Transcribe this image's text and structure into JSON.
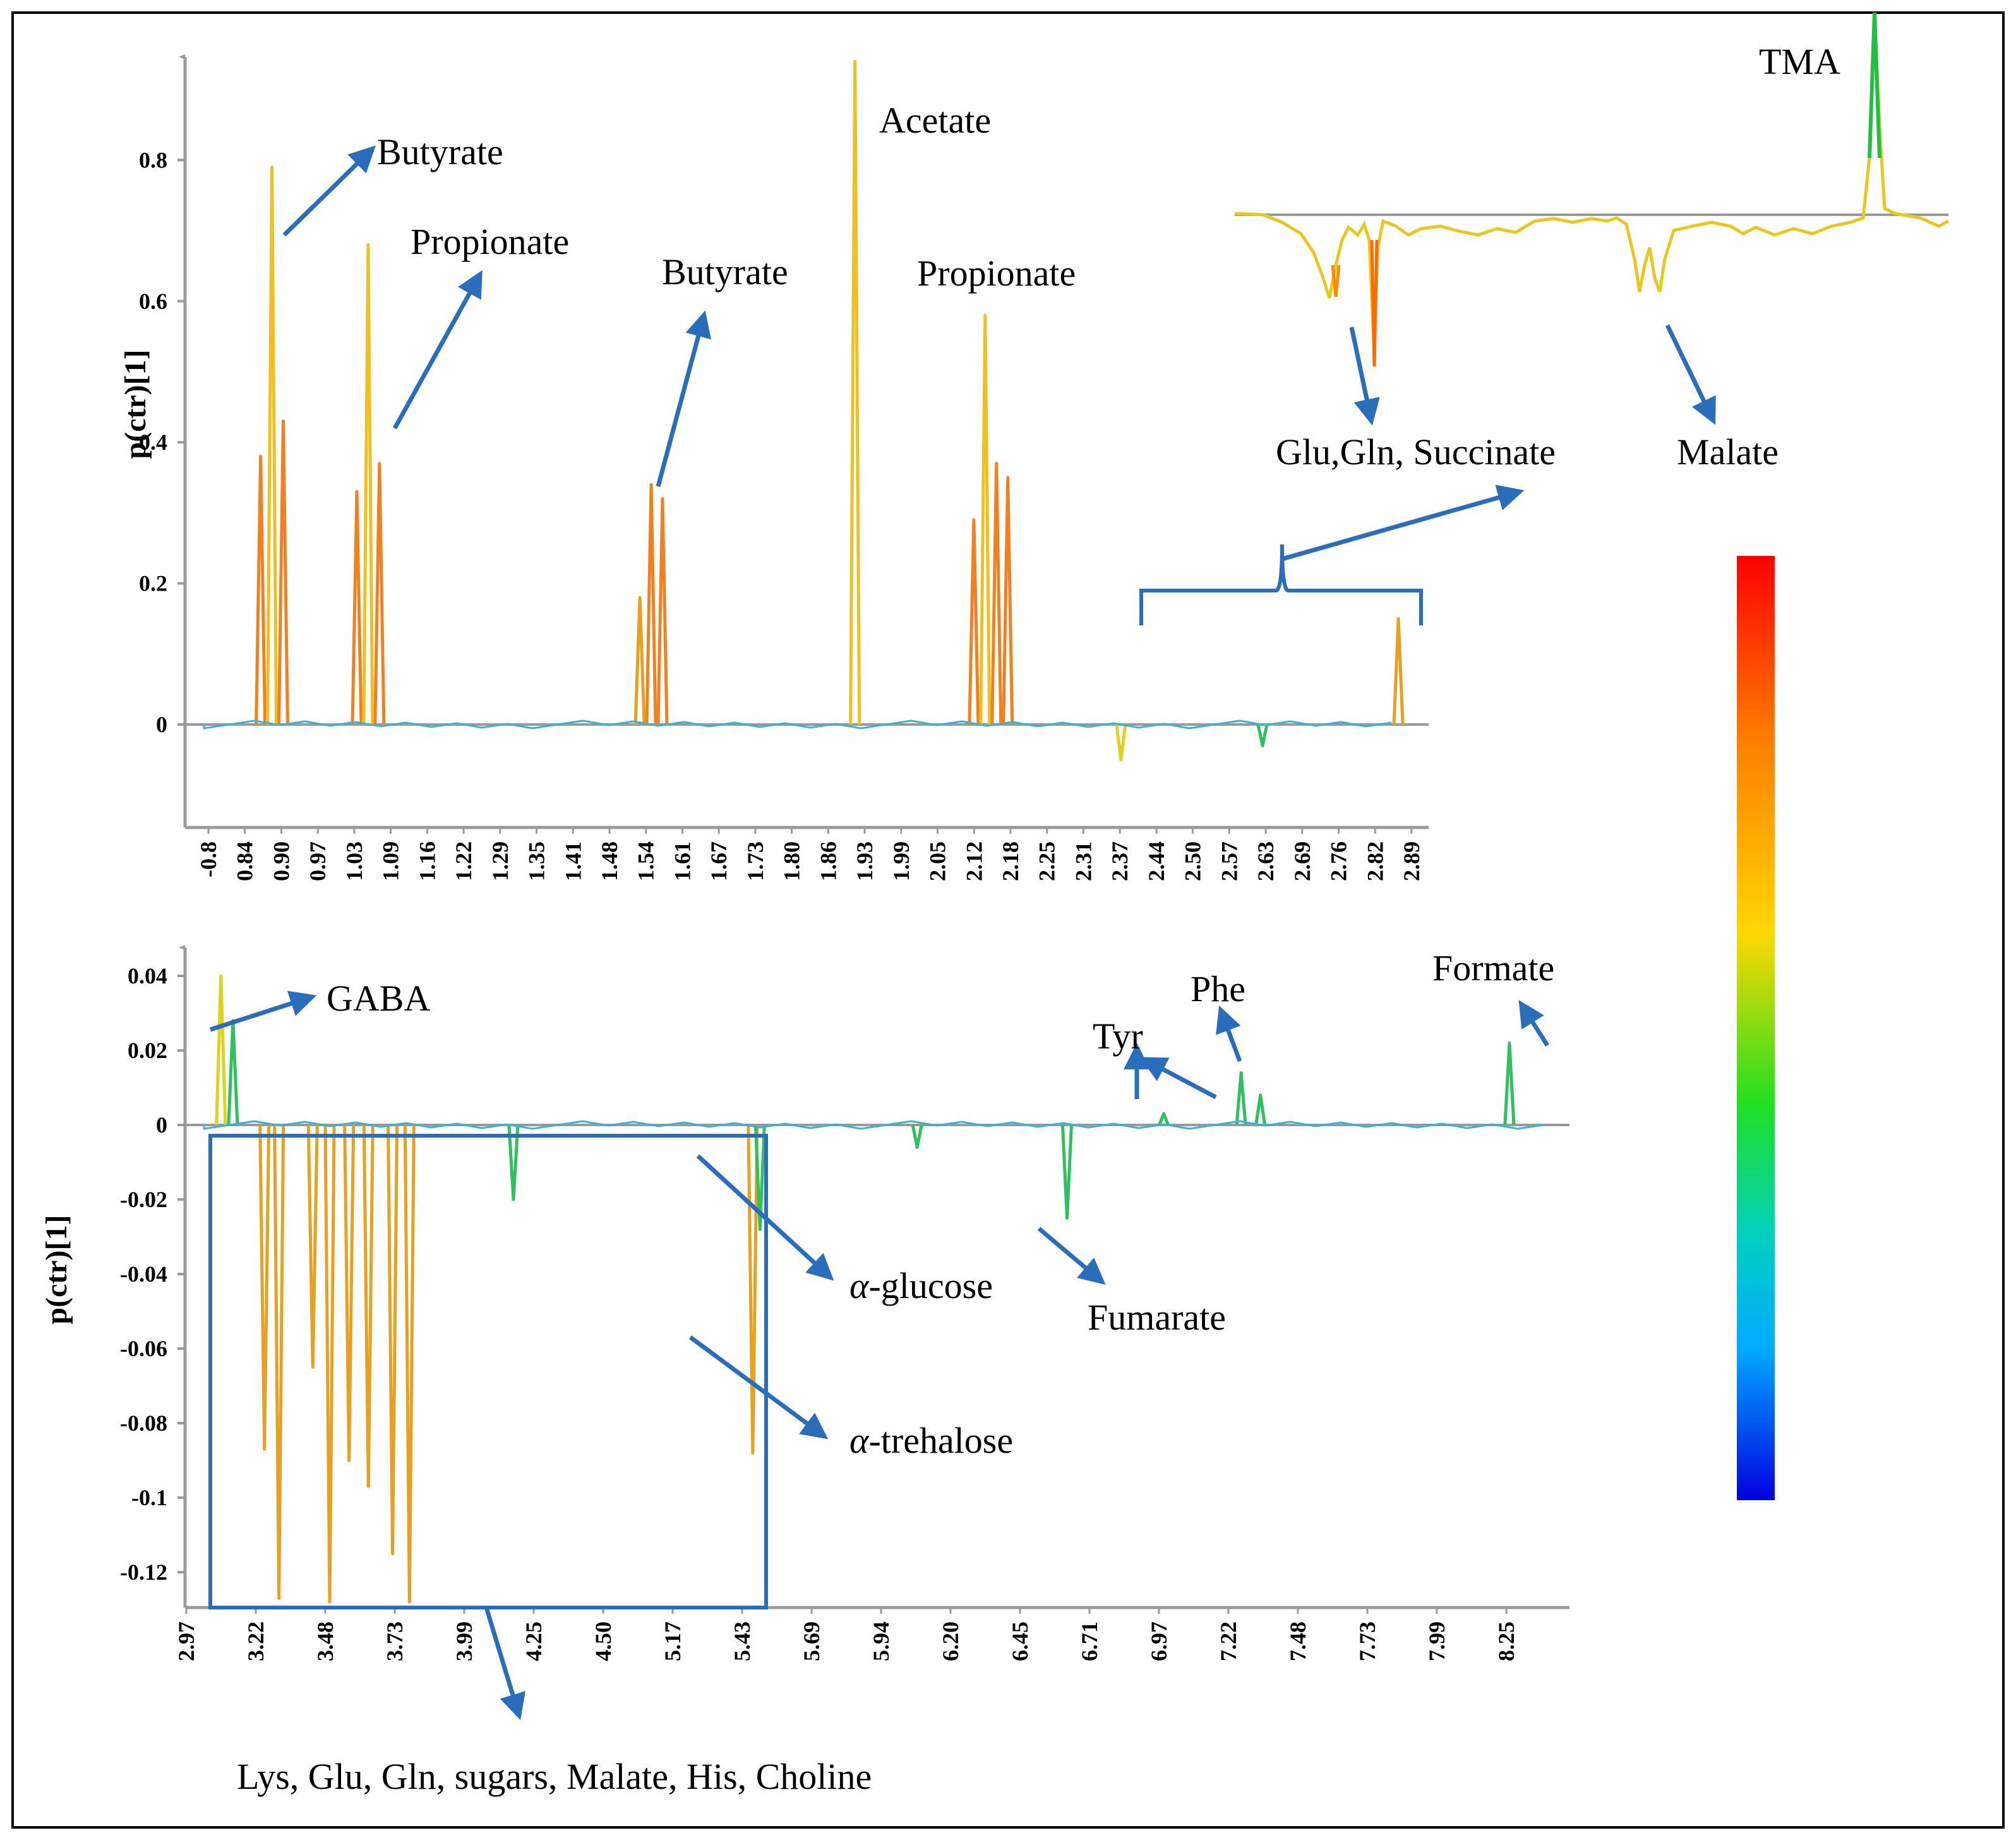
{
  "chart_data": [
    {
      "type": "line",
      "name": "upper-loading-plot",
      "ylabel": "p(ctr)[1]",
      "xlabel": "",
      "ylim": [
        -0.15,
        0.95
      ],
      "yticks": [
        "0.8",
        "0.6",
        "0.4",
        "0.2",
        "0"
      ],
      "ytick_values": [
        0.8,
        0.6,
        0.4,
        0.2,
        0
      ],
      "xticks": [
        "-0.8",
        "0.84",
        "0.90",
        "0.97",
        "1.03",
        "1.09",
        "1.16",
        "1.22",
        "1.29",
        "1.35",
        "1.41",
        "1.48",
        "1.54",
        "1.61",
        "1.67",
        "1.73",
        "1.80",
        "1.86",
        "1.93",
        "1.99",
        "2.05",
        "2.12",
        "2.18",
        "2.25",
        "2.31",
        "2.37",
        "2.44",
        "2.50",
        "2.57",
        "2.63",
        "2.69",
        "2.76",
        "2.82",
        "2.89"
      ],
      "peaks": [
        {
          "x": 0.88,
          "y": 0.38
        },
        {
          "x": 0.9,
          "y": 0.79
        },
        {
          "x": 0.92,
          "y": 0.43
        },
        {
          "x": 1.05,
          "y": 0.33
        },
        {
          "x": 1.07,
          "y": 0.68
        },
        {
          "x": 1.09,
          "y": 0.37
        },
        {
          "x": 1.55,
          "y": 0.18
        },
        {
          "x": 1.57,
          "y": 0.34
        },
        {
          "x": 1.59,
          "y": 0.32
        },
        {
          "x": 1.93,
          "y": 0.94
        },
        {
          "x": 2.14,
          "y": 0.29
        },
        {
          "x": 2.16,
          "y": 0.58
        },
        {
          "x": 2.18,
          "y": 0.37
        },
        {
          "x": 2.2,
          "y": 0.35
        },
        {
          "x": 2.4,
          "y": -0.05
        },
        {
          "x": 2.65,
          "y": -0.03
        },
        {
          "x": 2.89,
          "y": 0.15
        }
      ],
      "annotations": [
        "Butyrate",
        "Propionate",
        "Butyrate",
        "Acetate",
        "Propionate"
      ]
    },
    {
      "type": "line",
      "name": "lower-loading-plot",
      "ylabel": "p(ctr)[1]",
      "xlabel": "",
      "ylim": [
        -0.13,
        0.045
      ],
      "yticks": [
        "0.04",
        "0.02",
        "0",
        "-0.02",
        "-0.04",
        "-0.06",
        "-0.08",
        "-0.1",
        "-0.12"
      ],
      "ytick_values": [
        0.04,
        0.02,
        0,
        -0.02,
        -0.04,
        -0.06,
        -0.08,
        -0.1,
        -0.12
      ],
      "xticks": [
        "2.97",
        "3.22",
        "3.48",
        "3.73",
        "3.99",
        "4.25",
        "4.50",
        "5.17",
        "5.43",
        "5.69",
        "5.94",
        "6.20",
        "6.45",
        "6.71",
        "6.97",
        "7.22",
        "7.48",
        "7.73",
        "7.99",
        "8.25"
      ],
      "peaks": [
        {
          "x": 3.02,
          "y": 0.04
        },
        {
          "x": 3.07,
          "y": 0.028
        },
        {
          "x": 3.2,
          "y": -0.087
        },
        {
          "x": 3.26,
          "y": -0.127
        },
        {
          "x": 3.4,
          "y": -0.065
        },
        {
          "x": 3.47,
          "y": -0.128
        },
        {
          "x": 3.55,
          "y": -0.09
        },
        {
          "x": 3.63,
          "y": -0.097
        },
        {
          "x": 3.73,
          "y": -0.115
        },
        {
          "x": 3.8,
          "y": -0.128
        },
        {
          "x": 4.23,
          "y": -0.02
        },
        {
          "x": 5.22,
          "y": -0.088
        },
        {
          "x": 5.25,
          "y": -0.028
        },
        {
          "x": 5.9,
          "y": -0.006
        },
        {
          "x": 6.52,
          "y": -0.025
        },
        {
          "x": 6.92,
          "y": 0.003
        },
        {
          "x": 7.24,
          "y": 0.014
        },
        {
          "x": 7.32,
          "y": 0.008
        },
        {
          "x": 8.35,
          "y": 0.022
        }
      ],
      "annotations": [
        "GABA",
        "Tyr",
        "Phe",
        "Formate",
        "α-glucose",
        "Fumarate",
        "α-trehalose",
        "Lys, Glu, Gln, sugars, Malate, His, Choline"
      ]
    },
    {
      "type": "line",
      "name": "inset-loading-plot",
      "annotations": [
        "TMA",
        "Glu,Gln, Succinate",
        "Malate"
      ]
    }
  ],
  "labels": {
    "butyrate_1": "Butyrate",
    "propionate_1": "Propionate",
    "butyrate_2": "Butyrate",
    "acetate": "Acetate",
    "propionate_2": "Propionate",
    "tma": "TMA",
    "glu_gln_succinate": "Glu,Gln, Succinate",
    "malate": "Malate",
    "gaba": "GABA",
    "tyr": "Tyr",
    "phe": "Phe",
    "formate": "Formate",
    "glucose_prefix": "α",
    "glucose_suffix": "-glucose",
    "fumarate": "Fumarate",
    "trehalose_prefix": "α",
    "trehalose_suffix": "-trehalose",
    "region_list": "Lys, Glu, Gln, sugars, Malate, His, Choline"
  },
  "colors": {
    "arrow": "#2a6ebb",
    "axis": "#9a9a9a",
    "colorbar": [
      "#ff0000",
      "#ff8000",
      "#ffd700",
      "#20e020",
      "#00d0c0",
      "#00aaff",
      "#0000e0"
    ]
  }
}
